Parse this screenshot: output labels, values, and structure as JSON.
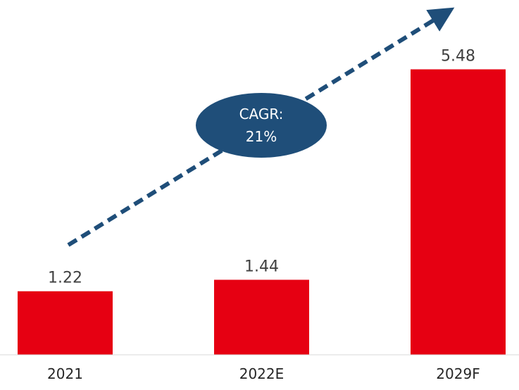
{
  "chart_data": {
    "type": "bar",
    "categories": [
      "2021",
      "2022E",
      "2029F"
    ],
    "values": [
      1.22,
      1.44,
      5.48
    ],
    "value_labels": [
      "1.22",
      "1.44",
      "5.48"
    ],
    "ylim": [
      0,
      6
    ],
    "grid": false,
    "bar_color": "#e60012",
    "annotation": {
      "line1": "CAGR:",
      "line2": "21%",
      "color": "#1f4e79"
    }
  }
}
